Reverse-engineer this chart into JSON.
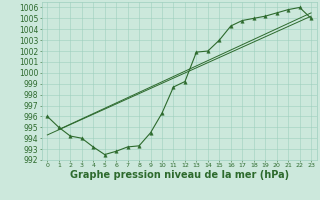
{
  "hours": [
    0,
    1,
    2,
    3,
    4,
    5,
    6,
    7,
    8,
    9,
    10,
    11,
    12,
    13,
    14,
    15,
    16,
    17,
    18,
    19,
    20,
    21,
    22,
    23
  ],
  "pressure": [
    996.0,
    995.0,
    994.2,
    994.0,
    993.2,
    992.5,
    992.8,
    993.2,
    993.3,
    994.5,
    996.3,
    998.7,
    999.2,
    1001.9,
    1002.0,
    1003.0,
    1004.3,
    1004.8,
    1005.0,
    1005.2,
    1005.5,
    1005.8,
    1006.0,
    1005.0
  ],
  "trend1_x": [
    0,
    23
  ],
  "trend1_y": [
    994.3,
    1005.2
  ],
  "trend2_x": [
    1,
    23
  ],
  "trend2_y": [
    994.8,
    1005.5
  ],
  "ylim": [
    992,
    1006.5
  ],
  "xlim": [
    -0.5,
    23.5
  ],
  "yticks": [
    992,
    993,
    994,
    995,
    996,
    997,
    998,
    999,
    1000,
    1001,
    1002,
    1003,
    1004,
    1005,
    1006
  ],
  "xticks": [
    0,
    1,
    2,
    3,
    4,
    5,
    6,
    7,
    8,
    9,
    10,
    11,
    12,
    13,
    14,
    15,
    16,
    17,
    18,
    19,
    20,
    21,
    22,
    23
  ],
  "line_color": "#2d6a2d",
  "bg_color": "#cce8dc",
  "grid_color": "#9ecfbe",
  "xlabel": "Graphe pression niveau de la mer (hPa)",
  "xlabel_fontsize": 7,
  "tick_fontsize": 5.5
}
